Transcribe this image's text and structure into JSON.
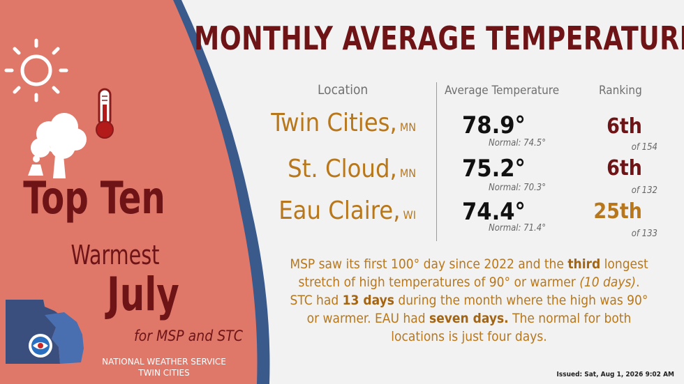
{
  "title": "MONTHLY AVERAGE TEMPERATURE",
  "headers": {
    "location": "Location",
    "avg_temp": "Average Temperature",
    "ranking": "Ranking"
  },
  "rows": [
    {
      "city": "Twin Cities,",
      "state": "MN",
      "temp": "78.9°",
      "normal": "Normal: 74.5°",
      "rank": "6th",
      "of": "of 154",
      "rank_color": "#6e1417"
    },
    {
      "city": "St. Cloud,",
      "state": "MN",
      "temp": "75.2°",
      "normal": "Normal: 70.3°",
      "rank": "6th",
      "of": "of 132",
      "rank_color": "#6e1417"
    },
    {
      "city": "Eau Claire,",
      "state": "WI",
      "temp": "74.4°",
      "normal": "Normal: 71.4°",
      "rank": "25th",
      "of": "of 133",
      "rank_color": "#b8771a"
    }
  ],
  "summary": {
    "p1": "MSP saw its first 100° day since 2022 and the ",
    "b1": "third",
    "p2": " longest stretch of high temperatures of 90° or warmer ",
    "i1": "(10 days)",
    "p3": ". STC had ",
    "b2": "13 days",
    "p4": " during the month where the high was 90° or warmer. EAU had ",
    "b3": "seven days.",
    "p5": " The normal for both locations is just four days."
  },
  "issued": "Issued: Sat, Aug 1, 2026 9:02 AM",
  "left_panel": {
    "top_ten": "Top Ten",
    "warmest": "Warmest",
    "july": "July",
    "for": "for MSP and STC",
    "nws_line1": "NATIONAL WEATHER SERVICE",
    "nws_line2": "TWIN CITIES",
    "icons": [
      "sun-icon",
      "thermometer-icon",
      "tree-icon",
      "person-reading-icon",
      "state-map-icon",
      "nws-logo-icon"
    ]
  },
  "colors": {
    "title": "#6e1417",
    "location": "#b8771a",
    "panel": "#e0786a",
    "arc": "#3b5a8c"
  }
}
